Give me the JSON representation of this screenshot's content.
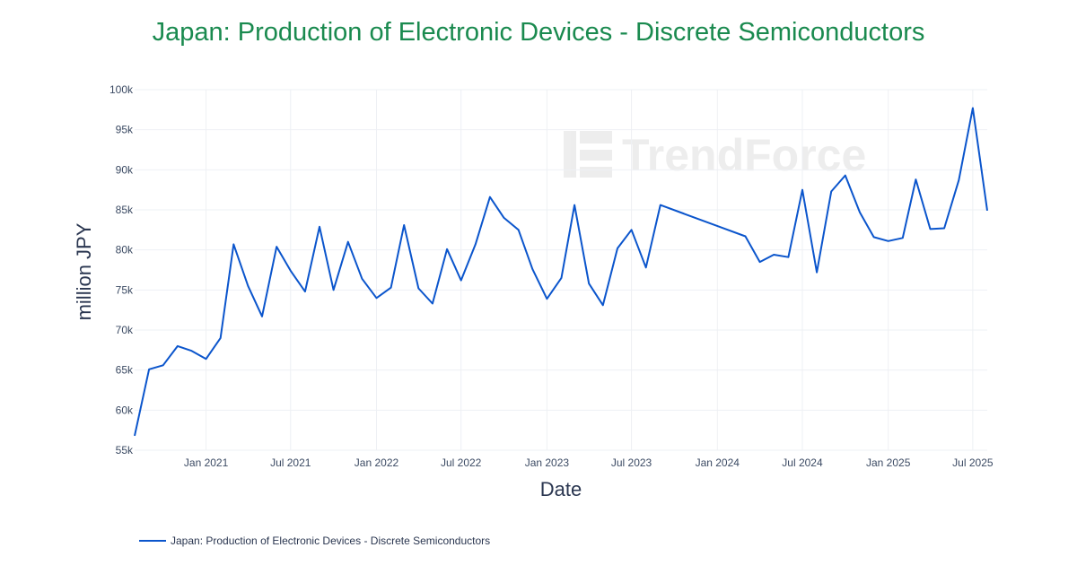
{
  "title": "Japan: Production of Electronic Devices - Discrete Semiconductors",
  "watermark": "TrendForce",
  "colors": {
    "title": "#1a8a4f",
    "line": "#0b55cc"
  },
  "chart_data": {
    "type": "line",
    "title": "Japan: Production of Electronic Devices - Discrete Semiconductors",
    "xlabel": "Date",
    "ylabel": "million JPY",
    "ylim": [
      55000,
      100000
    ],
    "yticks": [
      {
        "v": 55000,
        "label": "55k"
      },
      {
        "v": 60000,
        "label": "60k"
      },
      {
        "v": 65000,
        "label": "65k"
      },
      {
        "v": 70000,
        "label": "70k"
      },
      {
        "v": 75000,
        "label": "75k"
      },
      {
        "v": 80000,
        "label": "80k"
      },
      {
        "v": 85000,
        "label": "85k"
      },
      {
        "v": 90000,
        "label": "90k"
      },
      {
        "v": 95000,
        "label": "95k"
      },
      {
        "v": 100000,
        "label": "100k"
      }
    ],
    "xlim": [
      "2020-08-01",
      "2025-08-01"
    ],
    "xticks": [
      {
        "v": "2021-01-01",
        "label": "Jan 2021"
      },
      {
        "v": "2021-07-01",
        "label": "Jul 2021"
      },
      {
        "v": "2022-01-01",
        "label": "Jan 2022"
      },
      {
        "v": "2022-07-01",
        "label": "Jul 2022"
      },
      {
        "v": "2023-01-01",
        "label": "Jan 2023"
      },
      {
        "v": "2023-07-01",
        "label": "Jul 2023"
      },
      {
        "v": "2024-01-01",
        "label": "Jan 2024"
      },
      {
        "v": "2024-07-01",
        "label": "Jul 2024"
      },
      {
        "v": "2025-01-01",
        "label": "Jan 2025"
      },
      {
        "v": "2025-07-01",
        "label": "Jul 2025"
      }
    ],
    "grid": true,
    "legend_position": "bottom-left",
    "series": [
      {
        "name": "Japan: Production of Electronic Devices - Discrete Semiconductors",
        "color": "#0b55cc",
        "x": [
          "2020-08-01",
          "2020-09-01",
          "2020-10-01",
          "2020-11-01",
          "2020-12-01",
          "2021-01-01",
          "2021-02-01",
          "2021-03-01",
          "2021-04-01",
          "2021-05-01",
          "2021-06-01",
          "2021-07-01",
          "2021-08-01",
          "2021-09-01",
          "2021-10-01",
          "2021-11-01",
          "2021-12-01",
          "2022-01-01",
          "2022-02-01",
          "2022-03-01",
          "2022-04-01",
          "2022-05-01",
          "2022-06-01",
          "2022-07-01",
          "2022-08-01",
          "2022-09-01",
          "2022-10-01",
          "2022-11-01",
          "2022-12-01",
          "2023-01-01",
          "2023-02-01",
          "2023-03-01",
          "2023-04-01",
          "2023-05-01",
          "2023-06-01",
          "2023-07-01",
          "2023-08-01",
          "2023-09-01",
          "2024-03-01",
          "2024-04-01",
          "2024-05-01",
          "2024-06-01",
          "2024-07-01",
          "2024-08-01",
          "2024-09-01",
          "2024-10-01",
          "2024-11-01",
          "2024-12-01",
          "2025-01-01",
          "2025-02-01",
          "2025-03-01",
          "2025-04-01",
          "2025-05-01",
          "2025-06-01",
          "2025-07-01",
          "2025-08-01"
        ],
        "y": [
          56800,
          65100,
          65600,
          68000,
          67400,
          66400,
          69000,
          80700,
          75500,
          71700,
          80400,
          77400,
          74800,
          82900,
          75000,
          81000,
          76400,
          74000,
          75300,
          83100,
          75200,
          73300,
          80100,
          76200,
          80700,
          86600,
          84000,
          82500,
          77600,
          73900,
          76500,
          85600,
          75800,
          73100,
          80200,
          82500,
          77800,
          85600,
          81700,
          78500,
          79400,
          79100,
          87500,
          77200,
          87300,
          89300,
          84700,
          81600,
          81100,
          81500,
          88800,
          82600,
          82700,
          88700,
          97700,
          84900
        ]
      }
    ]
  }
}
